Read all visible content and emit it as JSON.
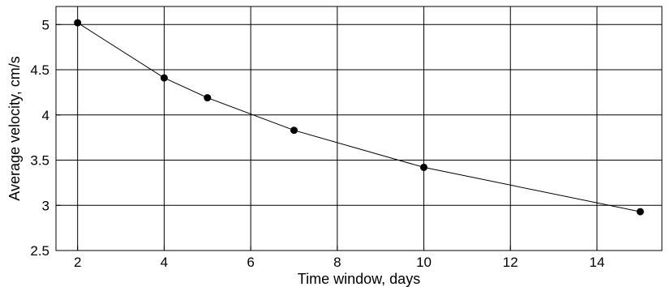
{
  "chart_data": {
    "type": "line",
    "title": "",
    "xlabel": "Time window, days",
    "ylabel": "Average velocity, cm/s",
    "xlim": [
      1.5,
      15.5
    ],
    "ylim": [
      2.5,
      5.2
    ],
    "xticks": [
      2,
      4,
      6,
      8,
      10,
      12,
      14
    ],
    "yticks": [
      2.5,
      3,
      3.5,
      4,
      4.5,
      5
    ],
    "xtick_labels": [
      "2",
      "4",
      "6",
      "8",
      "10",
      "12",
      "14"
    ],
    "ytick_labels": [
      "2.5",
      "3",
      "3.5",
      "4",
      "4.5",
      "5"
    ],
    "grid": true,
    "series": [
      {
        "x": [
          2,
          4,
          5,
          7,
          10,
          15
        ],
        "y": [
          5.02,
          4.41,
          4.19,
          3.83,
          3.42,
          2.93
        ],
        "color": "#000000",
        "marker": "circle"
      }
    ]
  }
}
